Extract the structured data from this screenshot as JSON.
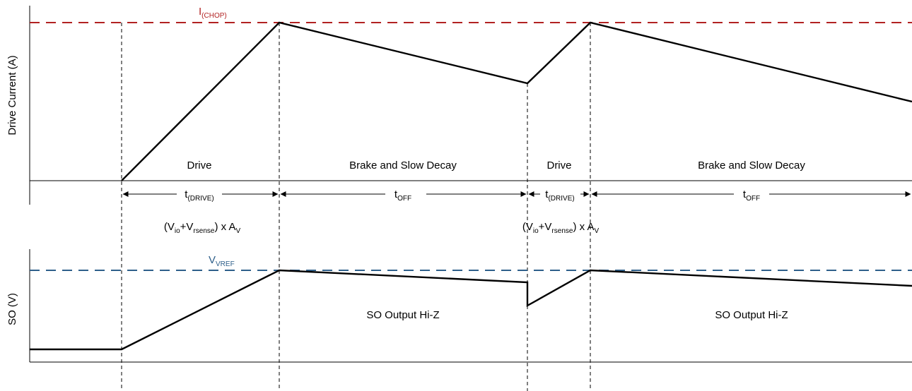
{
  "colors": {
    "chop_line": "#b22222",
    "vref_line": "#2e5f8a",
    "waveform": "#000000",
    "guides": "#000000"
  },
  "top_panel": {
    "ylabel": "Drive Current (A)",
    "threshold": {
      "base": "I",
      "sub": "(CHOP)"
    },
    "regions": [
      "Drive",
      "Brake and Slow Decay",
      "Drive",
      "Brake and Slow Decay"
    ],
    "intervals": [
      {
        "base": "t",
        "sub": "(DRIVE)"
      },
      {
        "base": "t",
        "sub": "OFF"
      },
      {
        "base": "t",
        "sub": "(DRIVE)"
      },
      {
        "base": "t",
        "sub": "OFF"
      }
    ]
  },
  "formula": {
    "p1": "(V",
    "s1": "io",
    "p2": "+V",
    "s2": "rsense",
    "p3": ") x A",
    "s3": "V"
  },
  "bottom_panel": {
    "ylabel": "SO (V)",
    "threshold": {
      "base": "V",
      "sub": "VREF"
    },
    "hiz_labels": [
      "SO Output Hi-Z",
      "SO Output Hi-Z"
    ]
  }
}
